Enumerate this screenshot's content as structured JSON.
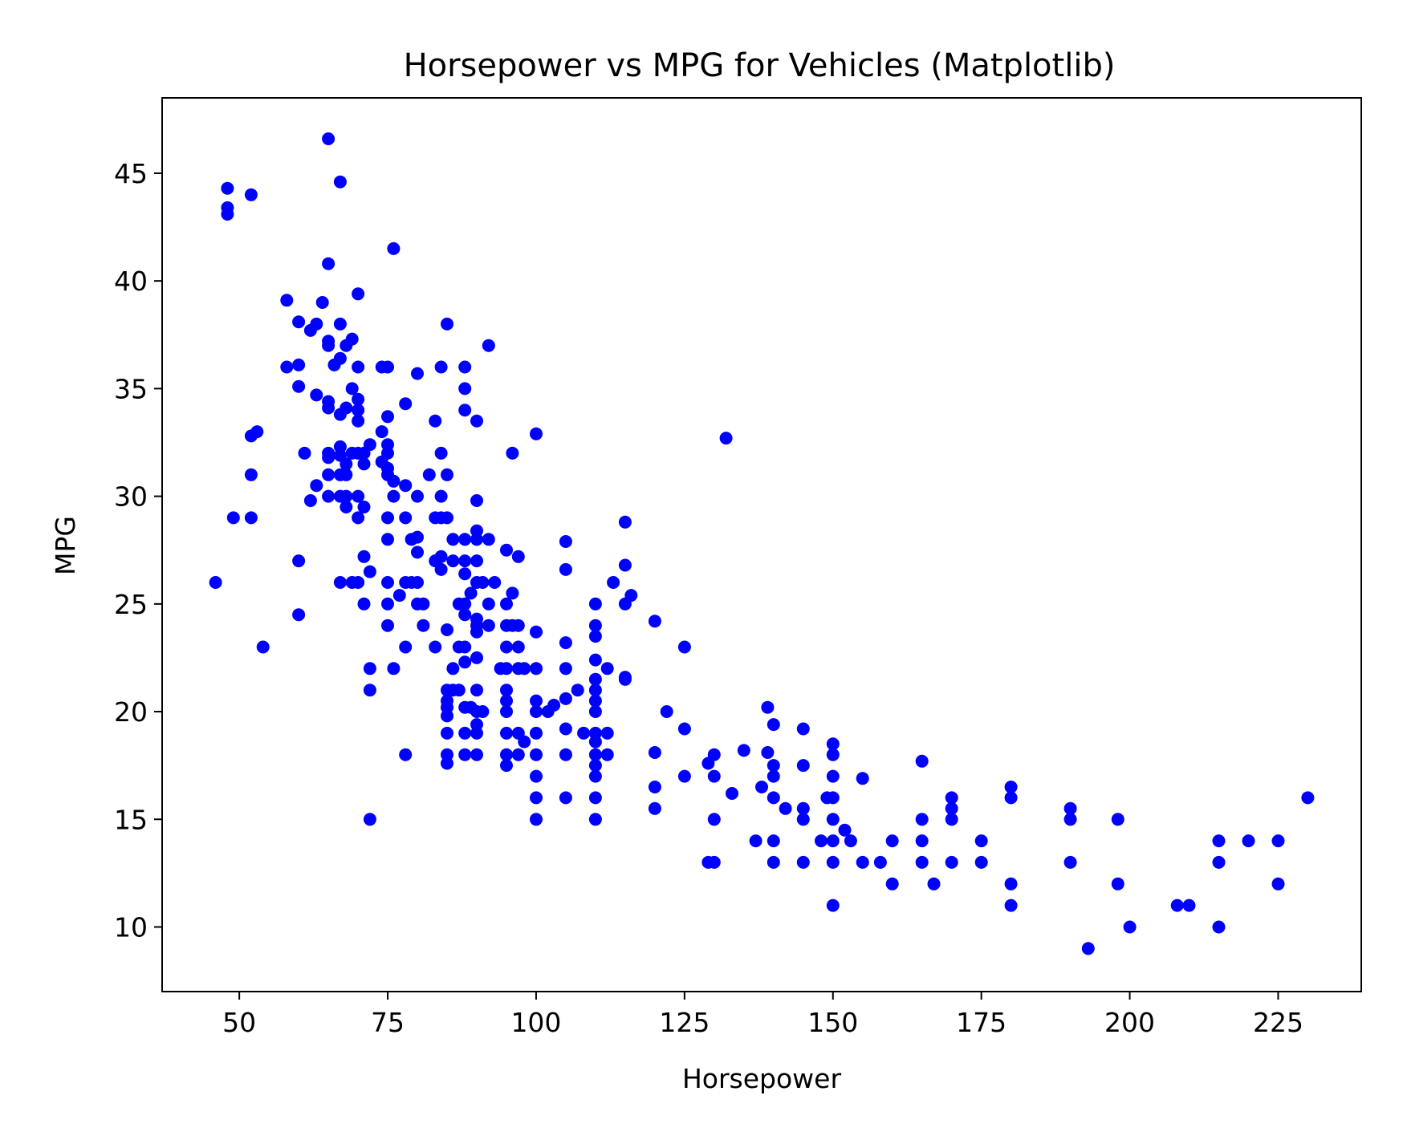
{
  "chart_data": {
    "type": "scatter",
    "title": "Horsepower vs MPG for Vehicles (Matplotlib)",
    "xlabel": "Horsepower",
    "ylabel": "MPG",
    "xlim": [
      37,
      239
    ],
    "ylim": [
      7.0,
      48.5
    ],
    "xticks": [
      50,
      75,
      100,
      125,
      150,
      175,
      200,
      225
    ],
    "yticks": [
      10,
      15,
      20,
      25,
      30,
      35,
      40,
      45
    ],
    "grid": false,
    "legend": "none",
    "marker_color": "#0000ff",
    "points": [
      [
        46,
        26
      ],
      [
        48,
        44.3
      ],
      [
        48,
        43.4
      ],
      [
        48,
        43.1
      ],
      [
        49,
        29
      ],
      [
        52,
        44
      ],
      [
        52,
        32.8
      ],
      [
        52,
        31
      ],
      [
        52,
        29
      ],
      [
        53,
        33
      ],
      [
        54,
        23
      ],
      [
        58,
        39.1
      ],
      [
        58,
        36
      ],
      [
        60,
        38.1
      ],
      [
        60,
        36.1
      ],
      [
        60,
        35.1
      ],
      [
        60,
        27
      ],
      [
        60,
        24.5
      ],
      [
        61,
        32
      ],
      [
        62,
        37.7
      ],
      [
        62,
        29.8
      ],
      [
        63,
        38
      ],
      [
        63,
        34.7
      ],
      [
        63,
        30.5
      ],
      [
        64,
        39
      ],
      [
        65,
        46.6
      ],
      [
        65,
        40.8
      ],
      [
        65,
        37.2
      ],
      [
        65,
        37
      ],
      [
        65,
        34.4
      ],
      [
        65,
        34.1
      ],
      [
        65,
        32
      ],
      [
        65,
        31.8
      ],
      [
        65,
        31
      ],
      [
        65,
        30
      ],
      [
        66,
        36.1
      ],
      [
        67,
        44.6
      ],
      [
        67,
        38
      ],
      [
        67,
        36.4
      ],
      [
        67,
        33.8
      ],
      [
        67,
        32.3
      ],
      [
        67,
        31.9
      ],
      [
        67,
        31
      ],
      [
        67,
        30
      ],
      [
        67,
        26
      ],
      [
        68,
        37
      ],
      [
        68,
        34.1
      ],
      [
        68,
        31.5
      ],
      [
        68,
        31
      ],
      [
        68,
        30
      ],
      [
        68,
        29.5
      ],
      [
        69,
        37.3
      ],
      [
        69,
        35
      ],
      [
        69,
        32
      ],
      [
        69,
        26
      ],
      [
        70,
        39.4
      ],
      [
        70,
        36
      ],
      [
        70,
        34.5
      ],
      [
        70,
        34
      ],
      [
        70,
        33.5
      ],
      [
        70,
        32
      ],
      [
        70,
        30
      ],
      [
        70,
        29
      ],
      [
        70,
        26
      ],
      [
        71,
        32
      ],
      [
        71,
        31.5
      ],
      [
        71,
        29.5
      ],
      [
        71,
        27.2
      ],
      [
        71,
        25
      ],
      [
        72,
        32.4
      ],
      [
        72,
        26.5
      ],
      [
        72,
        22
      ],
      [
        72,
        21
      ],
      [
        72,
        15
      ],
      [
        74,
        36
      ],
      [
        74,
        33
      ],
      [
        74,
        31.6
      ],
      [
        75,
        36
      ],
      [
        75,
        33.7
      ],
      [
        75,
        32.4
      ],
      [
        75,
        32
      ],
      [
        75,
        31.3
      ],
      [
        75,
        31
      ],
      [
        75,
        29
      ],
      [
        75,
        28
      ],
      [
        75,
        26
      ],
      [
        75,
        25
      ],
      [
        75,
        24
      ],
      [
        76,
        41.5
      ],
      [
        76,
        30.7
      ],
      [
        76,
        30
      ],
      [
        76,
        22
      ],
      [
        77,
        25.4
      ],
      [
        78,
        34.3
      ],
      [
        78,
        30.5
      ],
      [
        78,
        29
      ],
      [
        78,
        26
      ],
      [
        78,
        23
      ],
      [
        78,
        18
      ],
      [
        79,
        28
      ],
      [
        79,
        26
      ],
      [
        80,
        35.7
      ],
      [
        80,
        30
      ],
      [
        80,
        28.1
      ],
      [
        80,
        27.4
      ],
      [
        80,
        26
      ],
      [
        80,
        25
      ],
      [
        81,
        25
      ],
      [
        81,
        24
      ],
      [
        82,
        31
      ],
      [
        83,
        33.5
      ],
      [
        83,
        29
      ],
      [
        83,
        27
      ],
      [
        83,
        23
      ],
      [
        84,
        36
      ],
      [
        84,
        32
      ],
      [
        84,
        30
      ],
      [
        84,
        29
      ],
      [
        84,
        27.2
      ],
      [
        84,
        26.6
      ],
      [
        85,
        38
      ],
      [
        85,
        31
      ],
      [
        85,
        29
      ],
      [
        85,
        23.8
      ],
      [
        85,
        21
      ],
      [
        85,
        20.5
      ],
      [
        85,
        20.2
      ],
      [
        85,
        19.8
      ],
      [
        85,
        19
      ],
      [
        85,
        18
      ],
      [
        85,
        17.6
      ],
      [
        86,
        28
      ],
      [
        86,
        27
      ],
      [
        86,
        22
      ],
      [
        86,
        21
      ],
      [
        87,
        25
      ],
      [
        87,
        23
      ],
      [
        87,
        21
      ],
      [
        88,
        36
      ],
      [
        88,
        35
      ],
      [
        88,
        34
      ],
      [
        88,
        28
      ],
      [
        88,
        27
      ],
      [
        88,
        26.4
      ],
      [
        88,
        25
      ],
      [
        88,
        24.5
      ],
      [
        88,
        23
      ],
      [
        88,
        22.3
      ],
      [
        88,
        20.2
      ],
      [
        88,
        19
      ],
      [
        88,
        18
      ],
      [
        89,
        25.5
      ],
      [
        89,
        20.2
      ],
      [
        90,
        33.5
      ],
      [
        90,
        29.8
      ],
      [
        90,
        28.4
      ],
      [
        90,
        28
      ],
      [
        90,
        27
      ],
      [
        90,
        26
      ],
      [
        90,
        24.3
      ],
      [
        90,
        24
      ],
      [
        90,
        23.7
      ],
      [
        90,
        22.5
      ],
      [
        90,
        21
      ],
      [
        90,
        20
      ],
      [
        90,
        19.4
      ],
      [
        90,
        19
      ],
      [
        90,
        18
      ],
      [
        91,
        26
      ],
      [
        91,
        20
      ],
      [
        92,
        37
      ],
      [
        92,
        28
      ],
      [
        92,
        25
      ],
      [
        92,
        24
      ],
      [
        93,
        26
      ],
      [
        94,
        22
      ],
      [
        95,
        27.5
      ],
      [
        95,
        25
      ],
      [
        95,
        24
      ],
      [
        95,
        23
      ],
      [
        95,
        22
      ],
      [
        95,
        21
      ],
      [
        95,
        20.5
      ],
      [
        95,
        20
      ],
      [
        95,
        19
      ],
      [
        95,
        18
      ],
      [
        95,
        17.5
      ],
      [
        96,
        32
      ],
      [
        96,
        25.5
      ],
      [
        96,
        24
      ],
      [
        97,
        27.2
      ],
      [
        97,
        24
      ],
      [
        97,
        23
      ],
      [
        97,
        22
      ],
      [
        97,
        19
      ],
      [
        97,
        18
      ],
      [
        98,
        22
      ],
      [
        98,
        18.6
      ],
      [
        100,
        32.9
      ],
      [
        100,
        23.7
      ],
      [
        100,
        22
      ],
      [
        100,
        20.5
      ],
      [
        100,
        20
      ],
      [
        100,
        19
      ],
      [
        100,
        18
      ],
      [
        100,
        17
      ],
      [
        100,
        16
      ],
      [
        100,
        15
      ],
      [
        102,
        20
      ],
      [
        103,
        20.3
      ],
      [
        105,
        27.9
      ],
      [
        105,
        26.6
      ],
      [
        105,
        23.2
      ],
      [
        105,
        22
      ],
      [
        105,
        20.6
      ],
      [
        105,
        19.2
      ],
      [
        105,
        18
      ],
      [
        105,
        16
      ],
      [
        107,
        21
      ],
      [
        108,
        19
      ],
      [
        110,
        25
      ],
      [
        110,
        24
      ],
      [
        110,
        23.5
      ],
      [
        110,
        22.4
      ],
      [
        110,
        21.5
      ],
      [
        110,
        21
      ],
      [
        110,
        20.5
      ],
      [
        110,
        20
      ],
      [
        110,
        19
      ],
      [
        110,
        18.6
      ],
      [
        110,
        18
      ],
      [
        110,
        17.5
      ],
      [
        110,
        17
      ],
      [
        110,
        16
      ],
      [
        110,
        15
      ],
      [
        112,
        22
      ],
      [
        112,
        19
      ],
      [
        112,
        18
      ],
      [
        113,
        26
      ],
      [
        115,
        28.8
      ],
      [
        115,
        26.8
      ],
      [
        115,
        25
      ],
      [
        115,
        21.6
      ],
      [
        115,
        21.5
      ],
      [
        116,
        25.4
      ],
      [
        120,
        24.2
      ],
      [
        120,
        18.1
      ],
      [
        120,
        16.5
      ],
      [
        120,
        15.5
      ],
      [
        122,
        20
      ],
      [
        125,
        23
      ],
      [
        125,
        19.2
      ],
      [
        125,
        17
      ],
      [
        129,
        17.6
      ],
      [
        129,
        13
      ],
      [
        130,
        18
      ],
      [
        130,
        17
      ],
      [
        130,
        15
      ],
      [
        130,
        13
      ],
      [
        132,
        32.7
      ],
      [
        133,
        16.2
      ],
      [
        135,
        18.2
      ],
      [
        137,
        14
      ],
      [
        138,
        16.5
      ],
      [
        139,
        20.2
      ],
      [
        139,
        18.1
      ],
      [
        140,
        19.4
      ],
      [
        140,
        17.5
      ],
      [
        140,
        17
      ],
      [
        140,
        16
      ],
      [
        140,
        14
      ],
      [
        140,
        13
      ],
      [
        142,
        15.5
      ],
      [
        145,
        19.2
      ],
      [
        145,
        17.5
      ],
      [
        145,
        15.5
      ],
      [
        145,
        15
      ],
      [
        145,
        13
      ],
      [
        148,
        14
      ],
      [
        149,
        16
      ],
      [
        150,
        18.5
      ],
      [
        150,
        18
      ],
      [
        150,
        17
      ],
      [
        150,
        16
      ],
      [
        150,
        15
      ],
      [
        150,
        14
      ],
      [
        150,
        13
      ],
      [
        150,
        11
      ],
      [
        152,
        14.5
      ],
      [
        153,
        14
      ],
      [
        155,
        16.9
      ],
      [
        155,
        13
      ],
      [
        158,
        13
      ],
      [
        160,
        14
      ],
      [
        160,
        12
      ],
      [
        165,
        17.7
      ],
      [
        165,
        15
      ],
      [
        165,
        14
      ],
      [
        165,
        13
      ],
      [
        167,
        12
      ],
      [
        170,
        16
      ],
      [
        170,
        15.5
      ],
      [
        170,
        15
      ],
      [
        170,
        13
      ],
      [
        175,
        14
      ],
      [
        175,
        13
      ],
      [
        180,
        16.5
      ],
      [
        180,
        16
      ],
      [
        180,
        12
      ],
      [
        180,
        11
      ],
      [
        190,
        15.5
      ],
      [
        190,
        15
      ],
      [
        190,
        13
      ],
      [
        193,
        9
      ],
      [
        198,
        15
      ],
      [
        198,
        12
      ],
      [
        200,
        10
      ],
      [
        208,
        11
      ],
      [
        210,
        11
      ],
      [
        215,
        14
      ],
      [
        215,
        13
      ],
      [
        215,
        10
      ],
      [
        220,
        14
      ],
      [
        225,
        14
      ],
      [
        225,
        12
      ],
      [
        230,
        16
      ]
    ]
  }
}
